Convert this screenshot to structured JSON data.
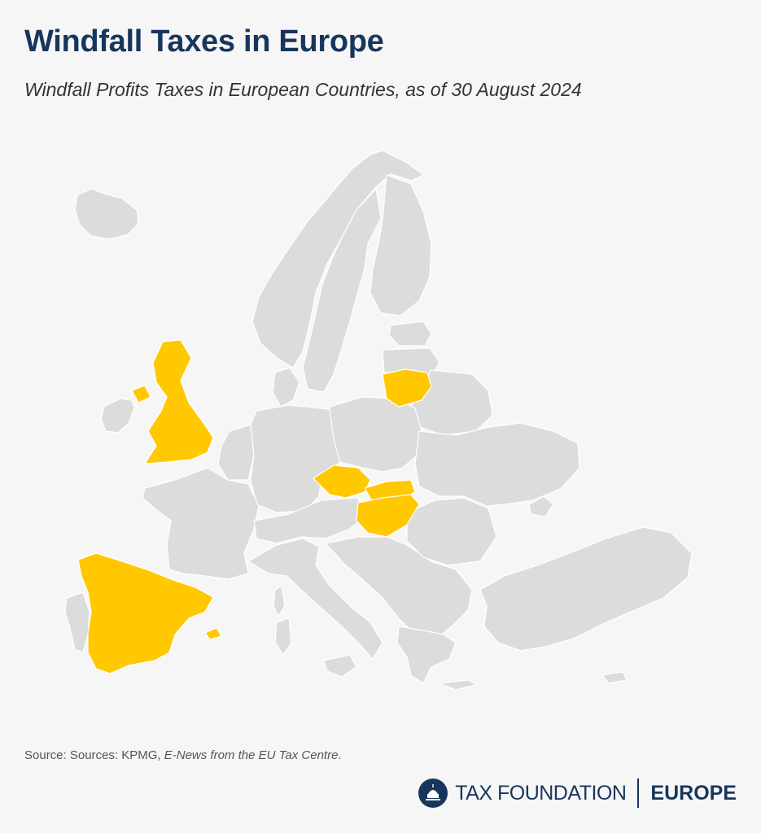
{
  "header": {
    "title": "Windfall Taxes in Europe",
    "subtitle": "Windfall Profits Taxes in European Countries, as of 30 August 2024"
  },
  "map": {
    "highlight_color": "#ffc800",
    "base_color": "#dcdcdc",
    "border_color": "#ffffff",
    "highlighted_countries": [
      "United Kingdom",
      "Spain",
      "Czech Republic",
      "Slovakia",
      "Hungary",
      "Lithuania"
    ]
  },
  "source": {
    "prefix": "Source: Sources: KPMG, ",
    "publication": "E-News from the EU Tax Centre",
    "suffix": "."
  },
  "brand": {
    "name": "TAX FOUNDATION",
    "region": "EUROPE",
    "logo_icon": "capitol-dome-icon"
  }
}
